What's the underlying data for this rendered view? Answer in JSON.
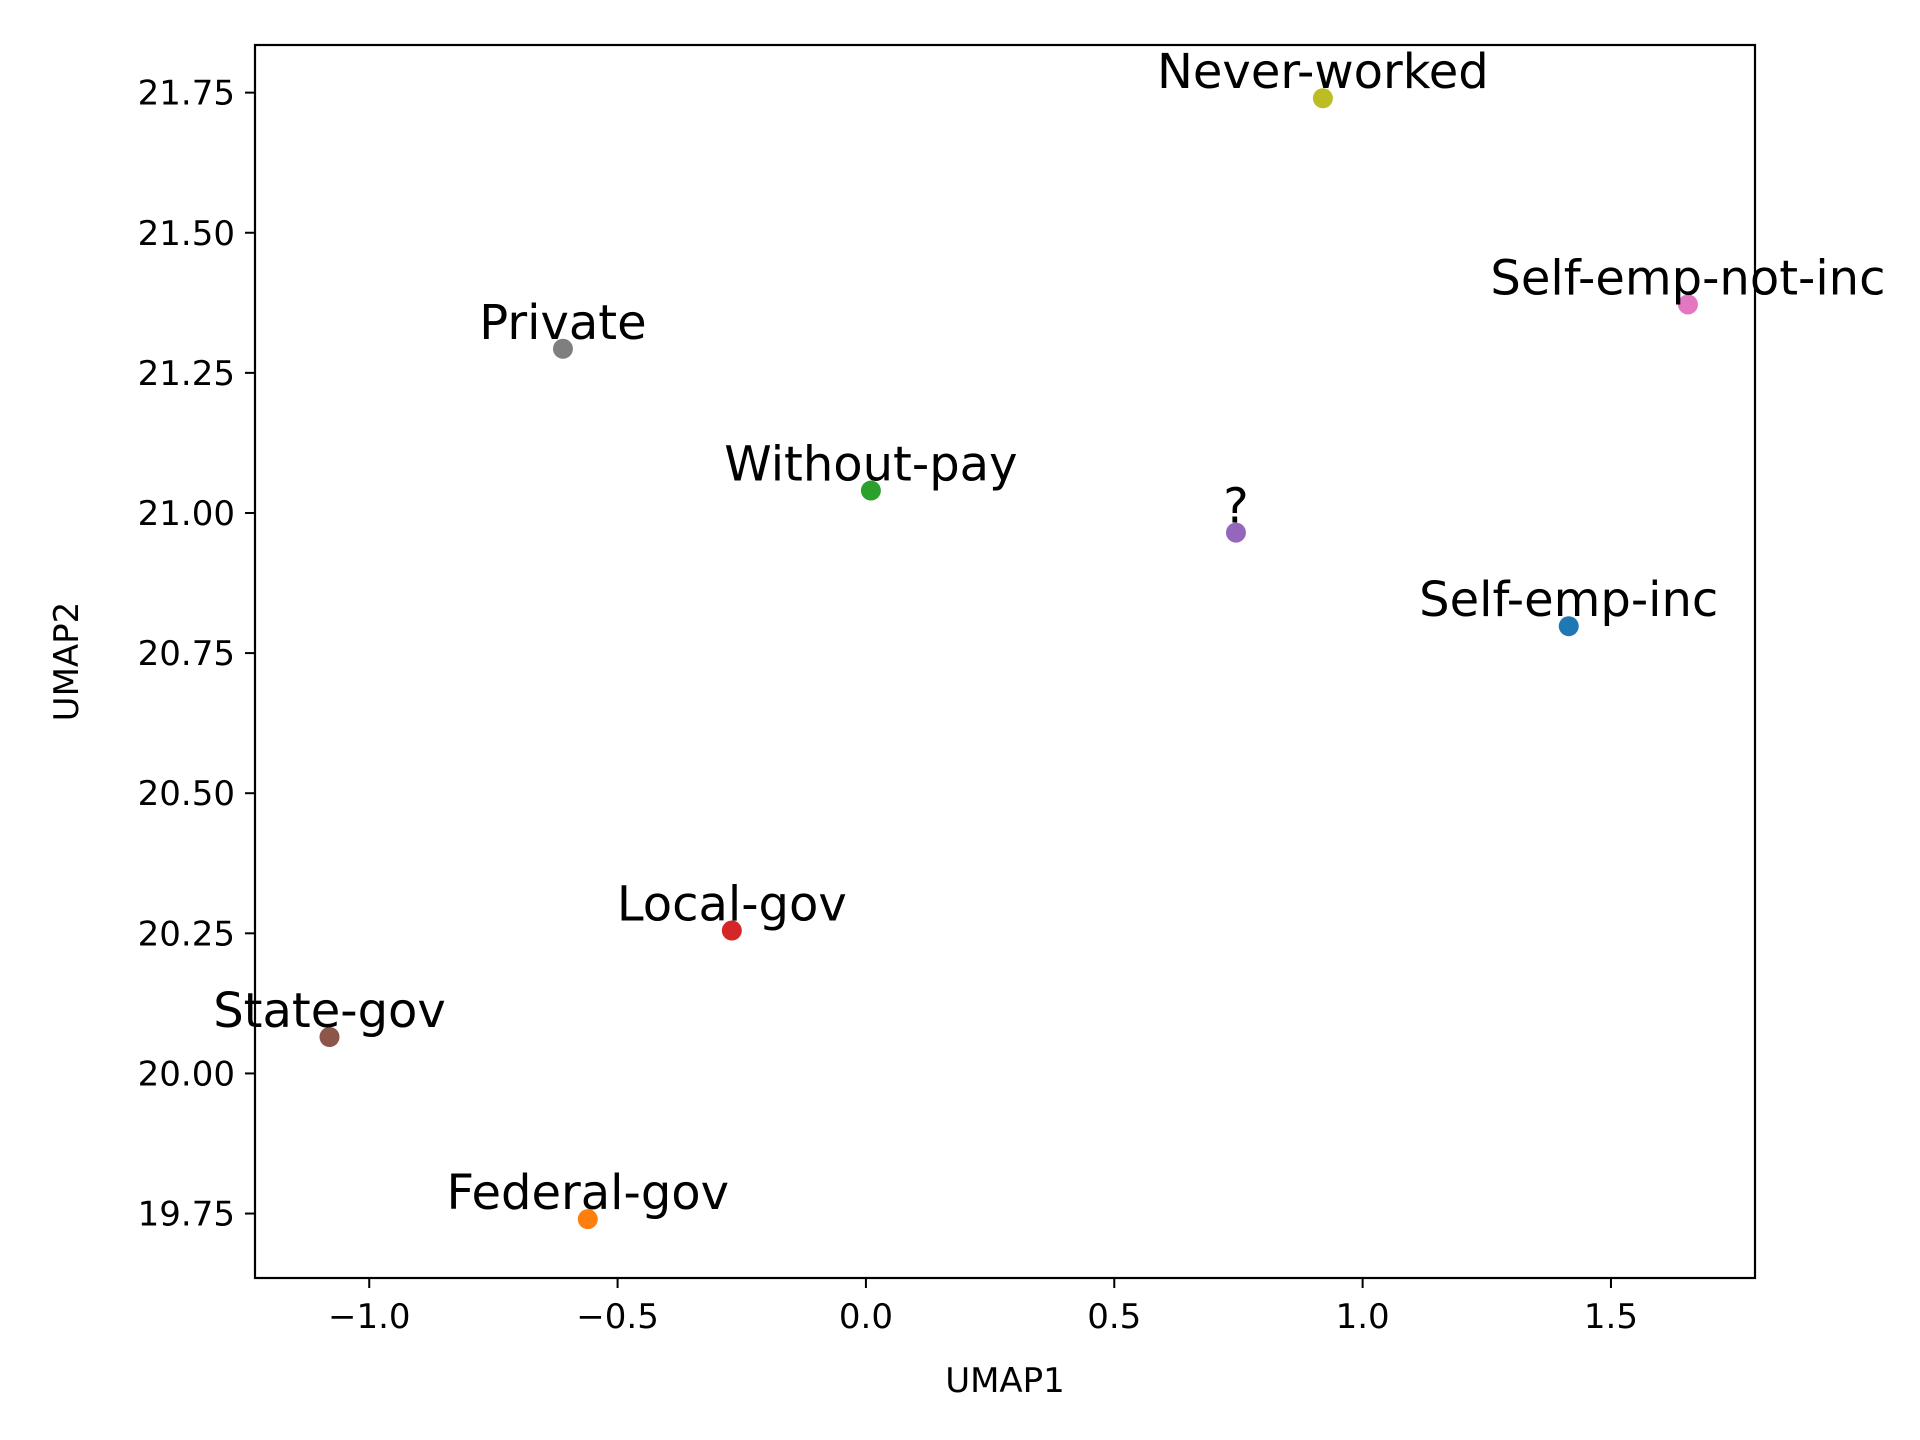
{
  "chart_data": {
    "type": "scatter",
    "title": "",
    "xlabel": "UMAP1",
    "ylabel": "UMAP2",
    "xlim": [
      -1.23,
      1.79
    ],
    "ylim": [
      19.635,
      21.835
    ],
    "grid": false,
    "xticks": [
      -1.0,
      -0.5,
      0.0,
      0.5,
      1.0,
      1.5
    ],
    "xtick_labels": [
      "−1.0",
      "−0.5",
      "0.0",
      "0.5",
      "1.0",
      "1.5"
    ],
    "yticks": [
      19.75,
      20.0,
      20.25,
      20.5,
      20.75,
      21.0,
      21.25,
      21.5,
      21.75
    ],
    "ytick_labels": [
      "19.75",
      "20.00",
      "20.25",
      "20.50",
      "20.75",
      "21.00",
      "21.25",
      "21.50",
      "21.75"
    ],
    "points": [
      {
        "label": "Never-worked",
        "x": 0.92,
        "y": 21.74,
        "color": "#bcbd22"
      },
      {
        "label": "Self-emp-not-inc",
        "x": 1.655,
        "y": 21.372,
        "color": "#e377c2"
      },
      {
        "label": "Private",
        "x": -0.61,
        "y": 21.293,
        "color": "#7f7f7f"
      },
      {
        "label": "Without-pay",
        "x": 0.01,
        "y": 21.04,
        "color": "#2ca02c"
      },
      {
        "label": "?",
        "x": 0.745,
        "y": 20.965,
        "color": "#9467bd"
      },
      {
        "label": "Self-emp-inc",
        "x": 1.415,
        "y": 20.798,
        "color": "#1f77b4"
      },
      {
        "label": "Local-gov",
        "x": -0.27,
        "y": 20.255,
        "color": "#d62728"
      },
      {
        "label": "State-gov",
        "x": -1.08,
        "y": 20.065,
        "color": "#8c564b"
      },
      {
        "label": "Federal-gov",
        "x": -0.56,
        "y": 19.74,
        "color": "#ff7f0e"
      }
    ]
  }
}
